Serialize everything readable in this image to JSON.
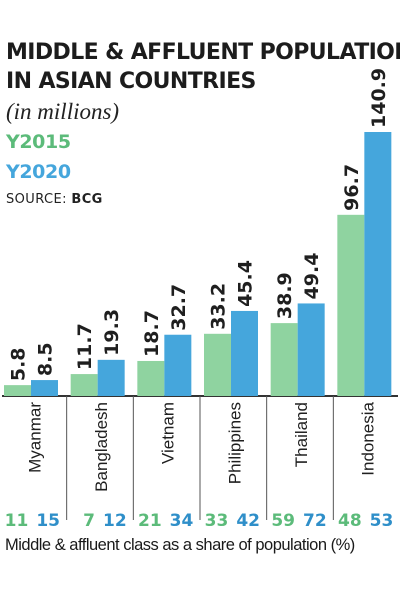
{
  "colors": {
    "y2015": "#8fd3a0",
    "y2020": "#45a6dc",
    "share2015": "#5cbb7a",
    "share2020": "#2f8fc9",
    "axis": "#333333"
  },
  "source": {
    "label": "SOURCE:",
    "value": "BCG"
  },
  "chart_data": {
    "type": "bar",
    "title": "MIDDLE & AFFLUENT POPULATION IN ASIAN COUNTRIES",
    "title_lines": [
      "MIDDLE & AFFLUENT POPULATION",
      "IN ASIAN COUNTRIES"
    ],
    "subtitle": "(in millions)",
    "categories": [
      "Myanmar",
      "Bangladesh",
      "Vietnam",
      "Philippines",
      "Thailand",
      "Indonesia"
    ],
    "series": [
      {
        "name": "Y2015",
        "values": [
          5.8,
          11.7,
          18.7,
          33.2,
          38.9,
          96.7
        ],
        "labels": [
          "5.8",
          "11.7",
          "18.7",
          "33.2",
          "38.9",
          "96.7"
        ]
      },
      {
        "name": "Y2020",
        "values": [
          8.5,
          19.3,
          32.7,
          45.4,
          49.4,
          140.9
        ],
        "labels": [
          "8.5",
          "19.3",
          "32.7",
          "45.4",
          "49.4",
          "140.9"
        ]
      }
    ],
    "ylim": [
      0,
      140.9
    ],
    "legend_position": "top-left",
    "grid": false,
    "share_of_population": {
      "label": "Middle & affluent class as a share of population (%)",
      "y2015": [
        "11",
        "7",
        "21",
        "33",
        "59",
        "48"
      ],
      "y2020": [
        "15",
        "12",
        "34",
        "42",
        "72",
        "53"
      ]
    }
  }
}
